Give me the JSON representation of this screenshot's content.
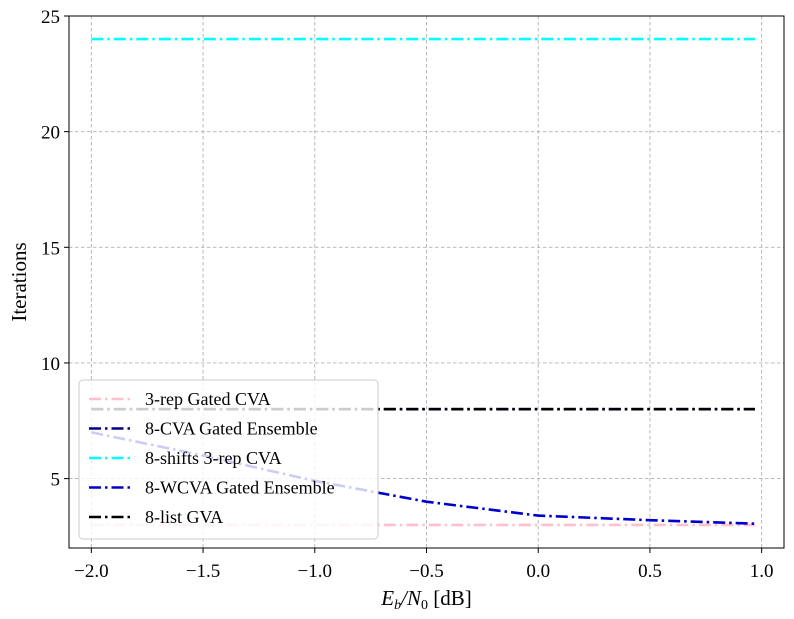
{
  "chart_data": {
    "type": "line",
    "title": "",
    "xlabel": {
      "main": "E",
      "sub1": "b",
      "mid": "/N",
      "sub2": "0",
      "tail": " [dB]"
    },
    "ylabel": "Iterations",
    "xlim": [
      -2.1,
      1.1
    ],
    "ylim": [
      2.0,
      25.0
    ],
    "xticks": [
      -2.0,
      -1.5,
      -1.0,
      -0.5,
      0.0,
      0.5,
      1.0
    ],
    "xtick_labels": [
      "−2.0",
      "−1.5",
      "−1.0",
      "−0.5",
      "0.0",
      "0.5",
      "1.0"
    ],
    "yticks": [
      5,
      10,
      15,
      20,
      25
    ],
    "ytick_labels": [
      "5",
      "10",
      "15",
      "20",
      "25"
    ],
    "grid": true,
    "legend_position": "lower-left",
    "series": [
      {
        "name": "3-rep Gated CVA",
        "color": "#ffc0cb",
        "x": [
          -2.0,
          -1.5,
          -1.0,
          -0.5,
          0.0,
          0.5,
          0.97
        ],
        "y": [
          3.0,
          3.0,
          3.0,
          3.0,
          3.0,
          3.0,
          3.0
        ]
      },
      {
        "name": "8-CVA Gated Ensemble",
        "color": "#00008b",
        "x": [
          -2.0,
          -1.5,
          -1.0,
          -0.5,
          0.0,
          0.5,
          0.97
        ],
        "y": [
          8.0,
          8.0,
          8.0,
          8.0,
          8.0,
          8.0,
          8.0
        ]
      },
      {
        "name": "8-shifts 3-rep CVA",
        "color": "#00ffff",
        "x": [
          -2.0,
          -1.5,
          -1.0,
          -0.5,
          0.0,
          0.5,
          0.97
        ],
        "y": [
          24.0,
          24.0,
          24.0,
          24.0,
          24.0,
          24.0,
          24.0
        ]
      },
      {
        "name": "8-WCVA Gated Ensemble",
        "color": "#0000cd",
        "x": [
          -2.0,
          -1.5,
          -1.0,
          -0.5,
          0.0,
          0.5,
          0.97
        ],
        "y": [
          7.0,
          6.0,
          4.9,
          4.0,
          3.4,
          3.2,
          3.05
        ]
      },
      {
        "name": "8-list GVA",
        "color": "#000000",
        "x": [
          -2.0,
          -1.5,
          -1.0,
          -0.5,
          0.0,
          0.5,
          0.97
        ],
        "y": [
          8.0,
          8.0,
          8.0,
          8.0,
          8.0,
          8.0,
          8.0
        ]
      }
    ]
  }
}
